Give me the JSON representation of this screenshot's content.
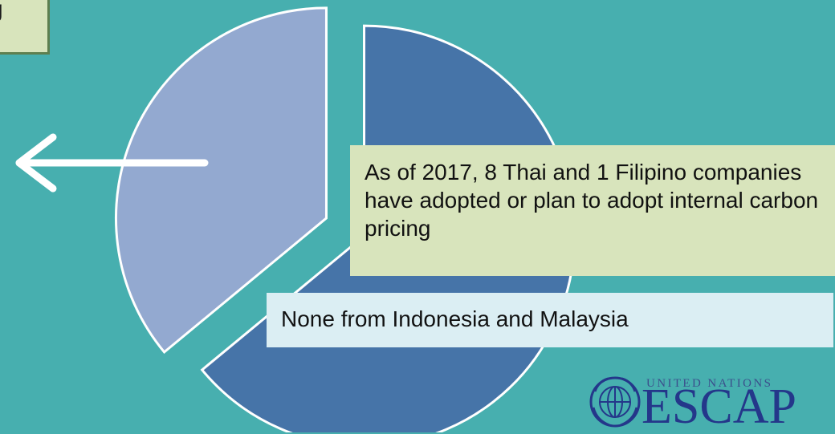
{
  "partial_box": {
    "text": "g"
  },
  "pie": {
    "slices": [
      {
        "name": "large-segment",
        "fraction": 0.64,
        "color": "#4674a8"
      },
      {
        "name": "small-segment",
        "fraction": 0.36,
        "color": "#93a9d0"
      }
    ],
    "stroke_color": "#ffffff"
  },
  "arrow": {
    "direction": "left",
    "color": "#ffffff"
  },
  "callouts": {
    "adoption": "As of 2017, 8 Thai and 1 Filipino companies have adopted or plan to adopt internal carbon pricing",
    "none": "None from Indonesia and Malaysia"
  },
  "logo": {
    "top_text": "UNITED NATIONS",
    "main_text": "ESCAP",
    "color": "#24378a"
  }
}
